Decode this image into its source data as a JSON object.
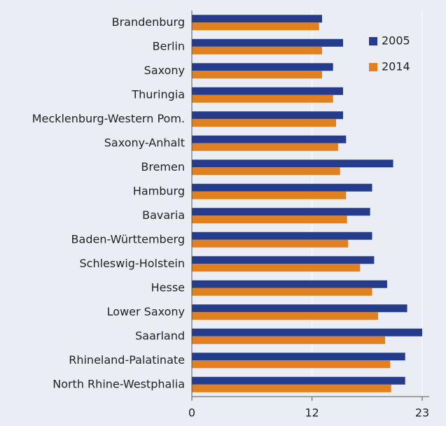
{
  "chart_data": {
    "type": "barh",
    "categories": [
      "Brandenburg",
      "Berlin",
      "Saxony",
      "Thuringia",
      "Mecklenburg-Western Pom.",
      "Saxony-Anhalt",
      "Bremen",
      "Hamburg",
      "Bavaria",
      "Baden-Württemberg",
      "Schleswig-Holstein",
      "Hesse",
      "Lower Saxony",
      "Saarland",
      "Rhineland-Palatinate",
      "North Rhine-Westphalia"
    ],
    "series": [
      {
        "name": "2005",
        "color": "#253b8b",
        "values": [
          13.0,
          15.1,
          14.1,
          15.1,
          15.1,
          15.4,
          20.1,
          18.0,
          17.8,
          18.0,
          18.2,
          19.5,
          21.5,
          23.0,
          21.3,
          21.3
        ]
      },
      {
        "name": "2014",
        "color": "#e0801f",
        "values": [
          12.7,
          13.0,
          13.0,
          14.1,
          14.4,
          14.6,
          14.8,
          15.4,
          15.5,
          15.6,
          16.8,
          18.0,
          18.6,
          19.3,
          19.8,
          19.9
        ]
      }
    ],
    "xlim": [
      0,
      23
    ],
    "xticks": [
      0,
      12,
      23
    ],
    "grid": true,
    "legend": "upper right"
  }
}
